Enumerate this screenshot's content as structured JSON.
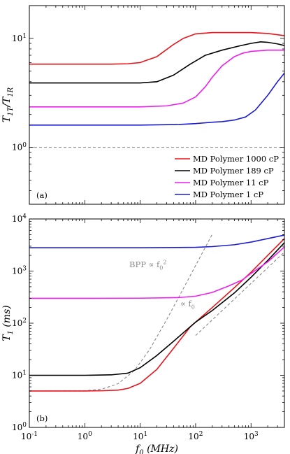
{
  "chart_data": [
    {
      "type": "line",
      "panel_label": "(a)",
      "ylabel": "T_{1T}/T_{1R}",
      "xscale": "log",
      "yscale": "log",
      "xlim": [
        0.1,
        4000
      ],
      "ylim": [
        0.3,
        20
      ],
      "x_ticks": [
        "10^{-1}",
        "10^{0}",
        "10^{1}",
        "10^{2}",
        "10^{3}"
      ],
      "y_ticks": [
        "10^{0}",
        "10^{1}"
      ],
      "legend_position": "lower-right",
      "reference_line": {
        "y": 1,
        "style": "dashed",
        "color": "#909090"
      },
      "series": [
        {
          "name": "MD Polymer 1000 cP",
          "color": "#e8141b",
          "x": [
            0.1,
            1,
            3,
            6,
            10,
            20,
            40,
            60,
            100,
            200,
            400,
            1000,
            2000,
            4000
          ],
          "y": [
            5.8,
            5.8,
            5.8,
            5.85,
            6.0,
            6.8,
            8.8,
            10.0,
            11.0,
            11.3,
            11.3,
            11.3,
            11.1,
            10.6
          ]
        },
        {
          "name": "MD Polymer 189 cP",
          "color": "#000000",
          "x": [
            0.1,
            1,
            10,
            20,
            40,
            80,
            150,
            300,
            600,
            1000,
            1500,
            2000,
            3000,
            4000
          ],
          "y": [
            3.9,
            3.9,
            3.9,
            4.0,
            4.6,
            5.8,
            7.0,
            7.8,
            8.5,
            9.0,
            9.3,
            9.2,
            8.9,
            8.6
          ]
        },
        {
          "name": "MD Polymer 11 cP",
          "color": "#ee1fee",
          "x": [
            0.1,
            1,
            10,
            30,
            60,
            100,
            150,
            200,
            300,
            500,
            700,
            1000,
            2000,
            4000
          ],
          "y": [
            2.35,
            2.35,
            2.35,
            2.4,
            2.55,
            2.9,
            3.6,
            4.4,
            5.6,
            6.8,
            7.3,
            7.6,
            7.8,
            7.8
          ]
        },
        {
          "name": "MD Polymer 1 cP",
          "color": "#1b1bd0",
          "x": [
            0.1,
            1,
            10,
            50,
            100,
            200,
            300,
            500,
            800,
            1200,
            2000,
            3000,
            4000
          ],
          "y": [
            1.6,
            1.6,
            1.6,
            1.62,
            1.65,
            1.7,
            1.72,
            1.78,
            1.9,
            2.2,
            3.0,
            4.0,
            4.8
          ]
        }
      ]
    },
    {
      "type": "line",
      "panel_label": "(b)",
      "xlabel": "f_0 (MHz)",
      "ylabel": "T_1 (ms)",
      "xscale": "log",
      "yscale": "log",
      "xlim": [
        0.1,
        4000
      ],
      "ylim": [
        1,
        10000
      ],
      "x_ticks": [
        "10^{-1}",
        "10^{0}",
        "10^{1}",
        "10^{2}",
        "10^{3}"
      ],
      "y_ticks": [
        "10^{0}",
        "10^{1}",
        "10^{2}",
        "10^{3}",
        "10^{4}"
      ],
      "series": [
        {
          "name": "MD Polymer 1000 cP",
          "color": "#e8141b",
          "x": [
            0.1,
            1,
            2,
            4,
            6,
            10,
            20,
            40,
            80,
            200,
            500,
            1000,
            2000,
            4000
          ],
          "y": [
            5,
            5,
            5.05,
            5.2,
            5.6,
            7,
            13,
            33,
            85,
            200,
            480,
            950,
            2000,
            4200
          ]
        },
        {
          "name": "MD Polymer 189 cP",
          "color": "#000000",
          "x": [
            0.1,
            1,
            3,
            6,
            10,
            20,
            40,
            100,
            200,
            500,
            1000,
            2000,
            4000
          ],
          "y": [
            10,
            10,
            10.2,
            11,
            14,
            24,
            45,
            105,
            175,
            380,
            760,
            1600,
            3500
          ]
        },
        {
          "name": "MD Polymer 11 cP",
          "color": "#ee1fee",
          "x": [
            0.1,
            1,
            10,
            50,
            100,
            200,
            400,
            700,
            1000,
            2000,
            4000
          ],
          "y": [
            300,
            300,
            302,
            310,
            330,
            390,
            520,
            680,
            900,
            1500,
            2900
          ]
        },
        {
          "name": "MD Polymer 1 cP",
          "color": "#1b1bd0",
          "x": [
            0.1,
            1,
            10,
            100,
            200,
            500,
            1000,
            2000,
            4000
          ],
          "y": [
            2800,
            2800,
            2800,
            2850,
            2950,
            3200,
            3600,
            4200,
            4900
          ]
        }
      ],
      "reference_curves": [
        {
          "label": "BPP ∝ f_0^2",
          "style": "dashed",
          "color": "#8a8a8a",
          "x": [
            0.1,
            1,
            2,
            4,
            8,
            15,
            30,
            60,
            100,
            150,
            200
          ],
          "y": [
            5,
            5.05,
            5.4,
            6.9,
            12.6,
            32,
            117,
            460,
            1280,
            2870,
            5100
          ]
        },
        {
          "label": "∝ f_0",
          "style": "dashed",
          "color": "#8a8a8a",
          "x": [
            100,
            4000
          ],
          "y": [
            58,
            2320
          ]
        }
      ]
    }
  ]
}
